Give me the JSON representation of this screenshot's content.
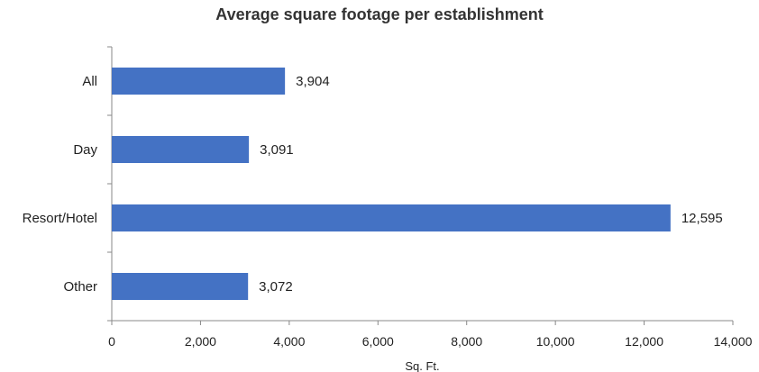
{
  "chart_data": {
    "type": "bar",
    "orientation": "horizontal",
    "title": "Average square footage per establishment",
    "xlabel": "Sq. Ft.",
    "ylabel": "",
    "categories": [
      "All",
      "Day",
      "Resort/Hotel",
      "Other"
    ],
    "values": [
      3904,
      3091,
      12595,
      3072
    ],
    "value_labels": [
      "3,904",
      "3,091",
      "12,595",
      "3,072"
    ],
    "xlim": [
      0,
      14000
    ],
    "x_ticks": [
      0,
      2000,
      4000,
      6000,
      8000,
      10000,
      12000,
      14000
    ],
    "x_tick_labels": [
      "0",
      "2,000",
      "4,000",
      "6,000",
      "8,000",
      "10,000",
      "12,000",
      "14,000"
    ],
    "grid": false,
    "legend": "none",
    "bar_color": "#4472C4"
  }
}
